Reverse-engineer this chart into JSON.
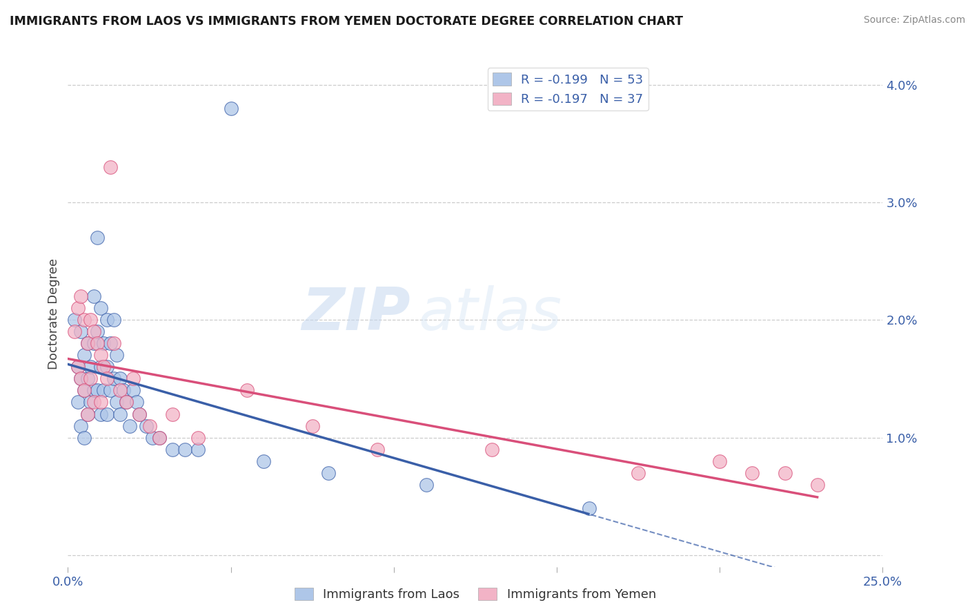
{
  "title": "IMMIGRANTS FROM LAOS VS IMMIGRANTS FROM YEMEN DOCTORATE DEGREE CORRELATION CHART",
  "source": "Source: ZipAtlas.com",
  "ylabel": "Doctorate Degree",
  "color_laos": "#aec6e8",
  "color_yemen": "#f2b3c6",
  "line_color_laos": "#3a5fa8",
  "line_color_yemen": "#d94f7a",
  "watermark_zip": "ZIP",
  "watermark_atlas": "atlas",
  "legend_laos": "R = -0.199   N = 53",
  "legend_yemen": "R = -0.197   N = 37",
  "legend_bottom_laos": "Immigrants from Laos",
  "legend_bottom_yemen": "Immigrants from Yemen",
  "laos_x": [
    0.002,
    0.003,
    0.003,
    0.004,
    0.004,
    0.004,
    0.005,
    0.005,
    0.005,
    0.006,
    0.006,
    0.006,
    0.007,
    0.007,
    0.008,
    0.008,
    0.008,
    0.009,
    0.009,
    0.009,
    0.01,
    0.01,
    0.01,
    0.011,
    0.011,
    0.012,
    0.012,
    0.012,
    0.013,
    0.013,
    0.014,
    0.014,
    0.015,
    0.015,
    0.016,
    0.016,
    0.017,
    0.018,
    0.019,
    0.02,
    0.021,
    0.022,
    0.024,
    0.026,
    0.028,
    0.032,
    0.036,
    0.04,
    0.05,
    0.06,
    0.08,
    0.11,
    0.16
  ],
  "laos_y": [
    0.02,
    0.016,
    0.013,
    0.019,
    0.015,
    0.011,
    0.017,
    0.014,
    0.01,
    0.018,
    0.015,
    0.012,
    0.016,
    0.013,
    0.022,
    0.018,
    0.014,
    0.027,
    0.019,
    0.014,
    0.021,
    0.016,
    0.012,
    0.018,
    0.014,
    0.02,
    0.016,
    0.012,
    0.018,
    0.014,
    0.02,
    0.015,
    0.017,
    0.013,
    0.015,
    0.012,
    0.014,
    0.013,
    0.011,
    0.014,
    0.013,
    0.012,
    0.011,
    0.01,
    0.01,
    0.009,
    0.009,
    0.009,
    0.038,
    0.008,
    0.007,
    0.006,
    0.004
  ],
  "yemen_x": [
    0.002,
    0.003,
    0.003,
    0.004,
    0.004,
    0.005,
    0.005,
    0.006,
    0.006,
    0.007,
    0.007,
    0.008,
    0.008,
    0.009,
    0.01,
    0.01,
    0.011,
    0.012,
    0.013,
    0.014,
    0.016,
    0.018,
    0.02,
    0.022,
    0.025,
    0.028,
    0.032,
    0.04,
    0.055,
    0.075,
    0.095,
    0.13,
    0.175,
    0.2,
    0.21,
    0.22,
    0.23
  ],
  "yemen_y": [
    0.019,
    0.021,
    0.016,
    0.022,
    0.015,
    0.02,
    0.014,
    0.018,
    0.012,
    0.02,
    0.015,
    0.019,
    0.013,
    0.018,
    0.017,
    0.013,
    0.016,
    0.015,
    0.033,
    0.018,
    0.014,
    0.013,
    0.015,
    0.012,
    0.011,
    0.01,
    0.012,
    0.01,
    0.014,
    0.011,
    0.009,
    0.009,
    0.007,
    0.008,
    0.007,
    0.007,
    0.006
  ],
  "xlim": [
    0.0,
    0.25
  ],
  "ylim": [
    -0.001,
    0.042
  ],
  "yticks": [
    0.0,
    0.01,
    0.02,
    0.03,
    0.04
  ],
  "ytick_labels": [
    "",
    "1.0%",
    "2.0%",
    "3.0%",
    "4.0%"
  ],
  "xtick_left_label": "0.0%",
  "xtick_right_label": "25.0%",
  "regression_laos_intercept": 0.013,
  "regression_laos_slope": -0.042,
  "regression_yemen_intercept": 0.013,
  "regression_yemen_slope": -0.028
}
